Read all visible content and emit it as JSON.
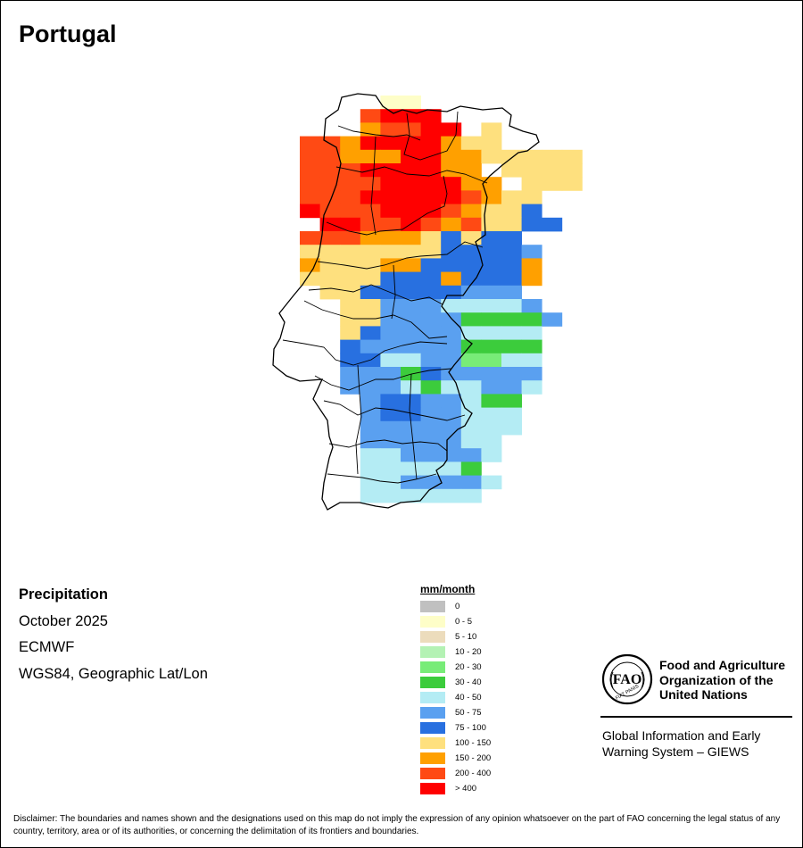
{
  "title": "Portugal",
  "info": {
    "variable": "Precipitation",
    "period": "October 2025",
    "source": "ECMWF",
    "projection": "WGS84, Geographic Lat/Lon"
  },
  "legend": {
    "unit": "mm/month",
    "classes": [
      {
        "label": "0",
        "color": "#c0c0c0"
      },
      {
        "label": "0 - 5",
        "color": "#fefec8"
      },
      {
        "label": "5 - 10",
        "color": "#ecdcbc"
      },
      {
        "label": "10 - 20",
        "color": "#b4f2b4"
      },
      {
        "label": "20 - 30",
        "color": "#78ec78"
      },
      {
        "label": "30 - 40",
        "color": "#3ccc3c"
      },
      {
        "label": "40 - 50",
        "color": "#b4ecf4"
      },
      {
        "label": "50 - 75",
        "color": "#5aa0f0"
      },
      {
        "label": "75 - 100",
        "color": "#2870e0"
      },
      {
        "label": "100 - 150",
        "color": "#fee07e"
      },
      {
        "label": "150 - 200",
        "color": "#ffa000"
      },
      {
        "label": "200 - 400",
        "color": "#ff4a14"
      },
      {
        "label": "> 400",
        "color": "#ff0000"
      }
    ]
  },
  "map": {
    "region": "Portugal",
    "grid_columns_start_lon": -9.6,
    "grid_rows_start_lat": 42.2,
    "cell_size_deg": 0.25,
    "rows": [
      "...11.........",
      "..BCCC........",
      "..ABBCC.9.....",
      "BBACCCCA99...",
      "BBAAACCAA99999",
      "BBBCCCCAA.9999",
      "BBBBCCCCAA.999",
      "BBBCCCCCBA99",
      "CBBBCCCBA998",
      "CCBBCBAB9988",
      "BBBAAA98988",
      "999999988887",
      "A999AA88888A",
      "9999888A888A",
      "9988888777",
      "9977766667",
      "99777755557",
      "9877776666",
      "8777775555",
      "8866774466",
      "7775877777",
      "7776566776",
      "78877655",
      "78877666",
      "77777666",
      "7777766",
      "6677776",
      "666665",
      "6677776",
      "666666"
    ],
    "row_offsets": [
      1,
      1,
      1,
      0,
      0,
      0,
      0,
      0,
      0,
      1,
      0,
      0,
      0,
      0,
      1,
      2,
      2,
      2,
      2,
      2,
      2,
      2,
      3,
      3,
      3,
      3,
      3,
      3,
      3,
      3
    ]
  },
  "organization": {
    "name": "Food and Agriculture Organization of the United Nations",
    "logo_text": "FAO",
    "logo_motto": "FIAT PANIS",
    "giews": "Global Information and Early Warning System – GIEWS"
  },
  "disclaimer": "Disclaimer: The boundaries and names shown and the designations used on this map do not imply the expression of any opinion whatsoever on the part of FAO concerning the legal status of any country, territory, area or of its authorities, or concerning the delimitation of its frontiers and boundaries."
}
